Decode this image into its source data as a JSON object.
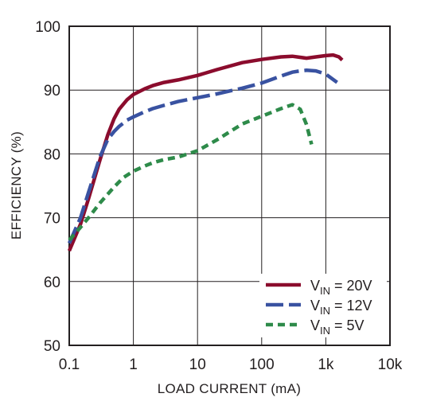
{
  "chart_data": {
    "type": "line",
    "xlabel": "LOAD CURRENT (mA)",
    "ylabel": "EFFICIENCY (%)",
    "x_scale": "log",
    "xlim": [
      0.1,
      10000
    ],
    "ylim": [
      50,
      100
    ],
    "x_ticks": [
      0.1,
      1,
      10,
      100,
      1000,
      10000
    ],
    "x_tick_labels": [
      "0.1",
      "1",
      "10",
      "100",
      "1k",
      "10k"
    ],
    "y_ticks": [
      50,
      60,
      70,
      80,
      90,
      100
    ],
    "y_tick_labels": [
      "50",
      "60",
      "70",
      "80",
      "90",
      "100"
    ],
    "grid": true,
    "legend_position": "bottom-right",
    "series": [
      {
        "name": "VIN = 20V",
        "label_main": "V",
        "label_sub": "IN",
        "label_rest": " = 20V",
        "color": "#8b0c2d",
        "style": "solid",
        "x": [
          0.1,
          0.15,
          0.2,
          0.3,
          0.4,
          0.5,
          0.6,
          0.7,
          0.8,
          1,
          1.5,
          2,
          3,
          5,
          10,
          20,
          50,
          100,
          200,
          300,
          500,
          700,
          1000,
          1300,
          1600,
          1800
        ],
        "y": [
          64.8,
          69,
          73,
          79,
          83,
          85.5,
          87,
          87.8,
          88.5,
          89.3,
          90.2,
          90.7,
          91.2,
          91.6,
          92.3,
          93.2,
          94.3,
          94.8,
          95.2,
          95.3,
          95.0,
          95.2,
          95.4,
          95.5,
          95.2,
          94.7
        ]
      },
      {
        "name": "VIN = 12V",
        "label_main": "V",
        "label_sub": "IN",
        "label_rest": " = 12V",
        "color": "#3952a1",
        "style": "dashed",
        "x": [
          0.1,
          0.15,
          0.2,
          0.3,
          0.4,
          0.5,
          0.6,
          0.8,
          1,
          1.5,
          2,
          3,
          5,
          10,
          20,
          50,
          100,
          200,
          300,
          400,
          500,
          700,
          1000,
          1500
        ],
        "y": [
          66.0,
          70,
          74,
          79.5,
          82.3,
          83.5,
          84.3,
          85.3,
          85.8,
          86.6,
          87.1,
          87.6,
          88.2,
          88.8,
          89.4,
          90.3,
          91.1,
          92.2,
          92.8,
          93.0,
          93.1,
          93.0,
          92.5,
          91.2
        ]
      },
      {
        "name": "VIN = 5V",
        "label_main": "V",
        "label_sub": "IN",
        "label_rest": " = 5V",
        "color": "#2e8b4a",
        "style": "short-dashed",
        "x": [
          0.1,
          0.15,
          0.2,
          0.3,
          0.5,
          0.7,
          1,
          1.5,
          2,
          3,
          5,
          10,
          20,
          50,
          100,
          200,
          300,
          400,
          500,
          600
        ],
        "y": [
          66.5,
          68.5,
          70.0,
          72.3,
          74.8,
          76.3,
          77.3,
          78.1,
          78.6,
          79.1,
          79.5,
          80.5,
          82.2,
          84.7,
          85.9,
          87.1,
          87.7,
          87.0,
          84.6,
          81.5
        ]
      }
    ]
  }
}
